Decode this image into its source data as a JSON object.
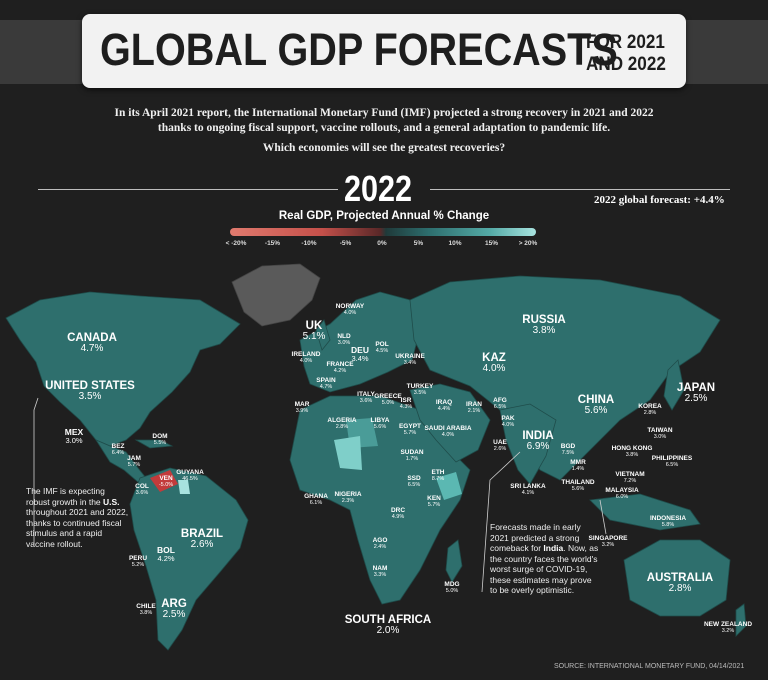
{
  "title": {
    "main": "GLOBAL GDP FORECASTS",
    "sub_line1": "FOR 2021",
    "sub_line2": "AND 2022"
  },
  "intro_line1": "In its April 2021 report, the International Monetary Fund (IMF) projected a strong recovery in 2021 and 2022",
  "intro_line2": "thanks to ongoing fiscal support, vaccine rollouts, and a general adaptation to pandemic life.",
  "question": "Which economies will see the greatest recoveries?",
  "year": "2022",
  "global_forecast": "2022 global forecast: +4.4%",
  "legend": {
    "title": "Real GDP, Projected Annual % Change",
    "ticks": [
      "< -20%",
      "-15%",
      "-10%",
      "-5%",
      "0%",
      "5%",
      "10%",
      "15%",
      "> 20%"
    ]
  },
  "colors": {
    "background": "#1f1f1f",
    "land": "#2e6f6d",
    "no_data": "#5a5a5a",
    "negative": "#c23b3b",
    "highlight_high": "#a8e3df"
  },
  "countries": [
    {
      "name": "CANADA",
      "value": "4.7%"
    },
    {
      "name": "UNITED STATES",
      "value": "3.5%"
    },
    {
      "name": "MEX",
      "value": "3.0%"
    },
    {
      "name": "BEZ",
      "value": "6.4%"
    },
    {
      "name": "JAM",
      "value": "5.7%"
    },
    {
      "name": "DOM",
      "value": "5.5%"
    },
    {
      "name": "COL",
      "value": "3.6%"
    },
    {
      "name": "VEN",
      "value": "-5.0%"
    },
    {
      "name": "GUYANA",
      "value": "46.5%"
    },
    {
      "name": "BRAZIL",
      "value": "2.6%"
    },
    {
      "name": "PERU",
      "value": "5.2%"
    },
    {
      "name": "BOL",
      "value": "4.2%"
    },
    {
      "name": "CHILE",
      "value": "3.8%"
    },
    {
      "name": "ARG",
      "value": "2.5%"
    },
    {
      "name": "NORWAY",
      "value": "4.0%"
    },
    {
      "name": "UK",
      "value": "5.1%"
    },
    {
      "name": "NLD",
      "value": "3.0%"
    },
    {
      "name": "IRELAND",
      "value": "4.0%"
    },
    {
      "name": "DEU",
      "value": "3.4%"
    },
    {
      "name": "POL",
      "value": "4.5%"
    },
    {
      "name": "UKRAINE",
      "value": "3.4%"
    },
    {
      "name": "FRANCE",
      "value": "4.2%"
    },
    {
      "name": "SPAIN",
      "value": "4.7%"
    },
    {
      "name": "ITALY",
      "value": "3.6%"
    },
    {
      "name": "GREECE",
      "value": "5.0%"
    },
    {
      "name": "ISR",
      "value": "4.3%"
    },
    {
      "name": "TURKEY",
      "value": "3.5%"
    },
    {
      "name": "MAR",
      "value": "3.9%"
    },
    {
      "name": "ALGERIA",
      "value": "2.8%"
    },
    {
      "name": "LIBYA",
      "value": "5.6%"
    },
    {
      "name": "EGYPT",
      "value": "5.7%"
    },
    {
      "name": "IRAQ",
      "value": "4.4%"
    },
    {
      "name": "IRAN",
      "value": "2.1%"
    },
    {
      "name": "AFG",
      "value": "6.5%"
    },
    {
      "name": "PAK",
      "value": "4.0%"
    },
    {
      "name": "SAUDI ARABIA",
      "value": "4.0%"
    },
    {
      "name": "UAE",
      "value": "2.6%"
    },
    {
      "name": "SUDAN",
      "value": "1.7%"
    },
    {
      "name": "ETH",
      "value": "8.7%"
    },
    {
      "name": "SSD",
      "value": "6.5%"
    },
    {
      "name": "KEN",
      "value": "5.7%"
    },
    {
      "name": "DRC",
      "value": "4.9%"
    },
    {
      "name": "GHANA",
      "value": "6.1%"
    },
    {
      "name": "NIGERIA",
      "value": "2.3%"
    },
    {
      "name": "AGO",
      "value": "2.4%"
    },
    {
      "name": "NAM",
      "value": "3.3%"
    },
    {
      "name": "SOUTH AFRICA",
      "value": "2.0%"
    },
    {
      "name": "MDG",
      "value": "5.0%"
    },
    {
      "name": "RUSSIA",
      "value": "3.8%"
    },
    {
      "name": "KAZ",
      "value": "4.0%"
    },
    {
      "name": "INDIA",
      "value": "6.9%"
    },
    {
      "name": "SRI LANKA",
      "value": "4.1%"
    },
    {
      "name": "BGD",
      "value": "7.5%"
    },
    {
      "name": "MMR",
      "value": "1.4%"
    },
    {
      "name": "THAILAND",
      "value": "5.6%"
    },
    {
      "name": "CHINA",
      "value": "5.6%"
    },
    {
      "name": "KOREA",
      "value": "2.8%"
    },
    {
      "name": "JAPAN",
      "value": "2.5%"
    },
    {
      "name": "TAIWAN",
      "value": "3.0%"
    },
    {
      "name": "HONG KONG",
      "value": "3.8%"
    },
    {
      "name": "PHILIPPINES",
      "value": "6.5%"
    },
    {
      "name": "VIETNAM",
      "value": "7.2%"
    },
    {
      "name": "MALAYSIA",
      "value": "6.0%"
    },
    {
      "name": "SINGAPORE",
      "value": "3.2%"
    },
    {
      "name": "INDONESIA",
      "value": "5.8%"
    },
    {
      "name": "AUSTRALIA",
      "value": "2.8%"
    },
    {
      "name": "NEW ZEALAND",
      "value": "3.2%"
    }
  ],
  "note_us": {
    "line1": "The IMF is expecting",
    "line2_pre": "robust growth in the ",
    "line2_bold": "U.S.",
    "line3": "throughout 2021 and 2022,",
    "line4": "thanks to continued fiscal",
    "line5": "stimulus and a rapid",
    "line6": "vaccine rollout."
  },
  "note_india": {
    "line1": "Forecasts made in early",
    "line2": "2021 predicted a strong",
    "line3_pre": "comeback for ",
    "line3_bold": "India",
    "line3_post": ". Now, as",
    "line4": "the country faces the world's",
    "line5": "worst surge of COVID-19,",
    "line6": "these estimates may prove",
    "line7": "to be overly optimistic."
  },
  "source": "SOURCE: INTERNATIONAL MONETARY FUND, 04/14/2021"
}
